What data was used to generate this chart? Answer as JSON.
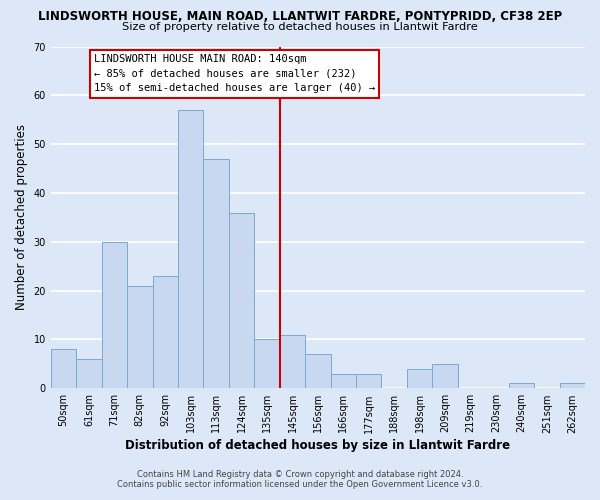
{
  "title": "LINDSWORTH HOUSE, MAIN ROAD, LLANTWIT FARDRE, PONTYPRIDD, CF38 2EP",
  "subtitle": "Size of property relative to detached houses in Llantwit Fardre",
  "xlabel": "Distribution of detached houses by size in Llantwit Fardre",
  "ylabel": "Number of detached properties",
  "bar_labels": [
    "50sqm",
    "61sqm",
    "71sqm",
    "82sqm",
    "92sqm",
    "103sqm",
    "113sqm",
    "124sqm",
    "135sqm",
    "145sqm",
    "156sqm",
    "166sqm",
    "177sqm",
    "188sqm",
    "198sqm",
    "209sqm",
    "219sqm",
    "230sqm",
    "240sqm",
    "251sqm",
    "262sqm"
  ],
  "bar_values": [
    8,
    6,
    30,
    21,
    23,
    57,
    47,
    36,
    10,
    11,
    7,
    3,
    3,
    0,
    4,
    5,
    0,
    0,
    1,
    0,
    1
  ],
  "bar_color": "#c8d8f0",
  "bar_edge_color": "#7aaacc",
  "ylim": [
    0,
    70
  ],
  "yticks": [
    0,
    10,
    20,
    30,
    40,
    50,
    60,
    70
  ],
  "vline_x": 8.5,
  "vline_color": "#cc0000",
  "annotation_title": "LINDSWORTH HOUSE MAIN ROAD: 140sqm",
  "annotation_line1": "← 85% of detached houses are smaller (232)",
  "annotation_line2": "15% of semi-detached houses are larger (40) →",
  "footer1": "Contains HM Land Registry data © Crown copyright and database right 2024.",
  "footer2": "Contains public sector information licensed under the Open Government Licence v3.0.",
  "fig_background_color": "#dce8f8",
  "plot_background_color": "#dce8f8",
  "grid_color": "#ffffff",
  "title_fontsize": 8.5,
  "subtitle_fontsize": 8.2,
  "axis_label_fontsize": 8.5,
  "tick_fontsize": 7.0,
  "footer_fontsize": 6.0
}
